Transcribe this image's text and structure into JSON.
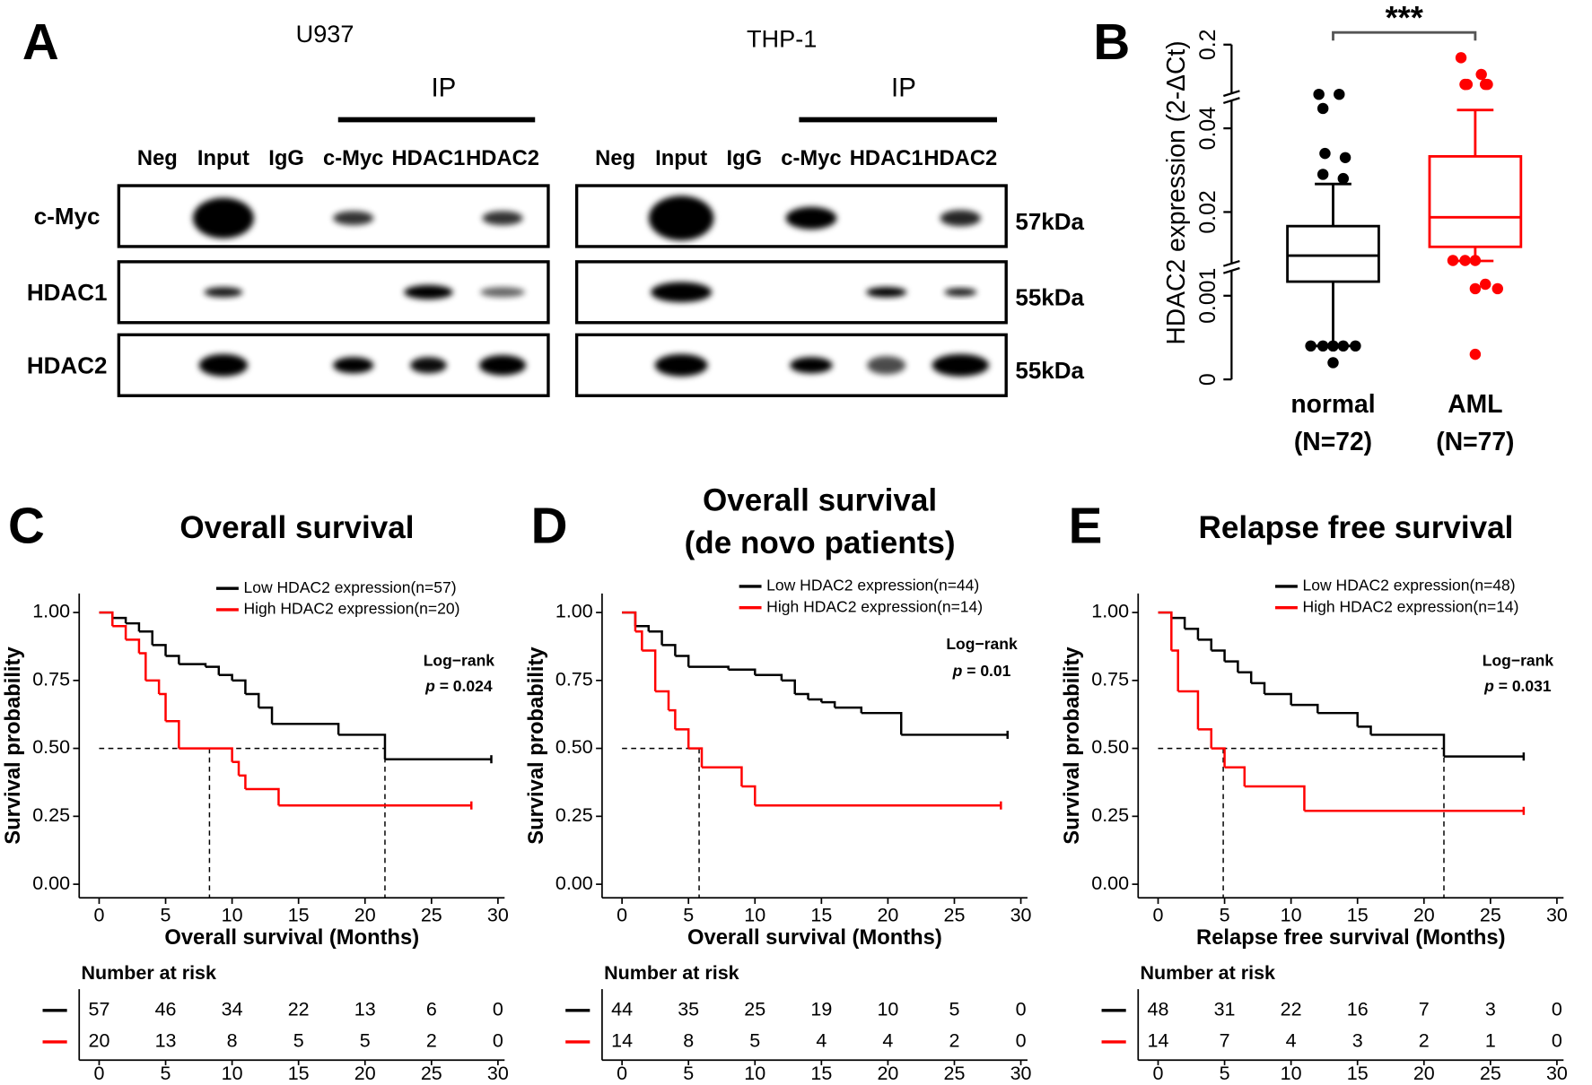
{
  "panel_a": {
    "panel_label": "A",
    "blots": [
      {
        "cell_line": "U937",
        "ip_label": "IP",
        "lanes": [
          "Neg",
          "Input",
          "IgG",
          "c-Myc",
          "HDAC1",
          "HDAC2"
        ]
      },
      {
        "cell_line": "THP-1",
        "ip_label": "IP",
        "lanes": [
          "Neg",
          "Input",
          "IgG",
          "c-Myc",
          "HDAC1",
          "HDAC2"
        ]
      }
    ],
    "rows": [
      {
        "protein": "c-Myc",
        "size": "57kDa"
      },
      {
        "protein": "HDAC1",
        "size": "55kDa"
      },
      {
        "protein": "HDAC2",
        "size": "55kDa"
      }
    ]
  },
  "chart_data": [
    {
      "type": "box",
      "panel_label": "B",
      "y_label": "HDAC2 expression (2-ΔCt)",
      "annotation": "***",
      "categories": [
        "normal",
        "AML"
      ],
      "category_notes": [
        "(N=72)",
        "(N=77)"
      ],
      "colors": [
        "#000000",
        "#ff0000"
      ],
      "boxes": [
        {
          "whisker_low": 0.0004,
          "q1": 0.0042,
          "median": 0.0101,
          "q3": 0.0168,
          "whisker_high": 0.0267,
          "outliers": [
            0.105,
            0.105,
            0.078,
            0.034,
            0.033,
            0.029,
            0.028,
            0.0004,
            0.0004,
            0.0004,
            0.0004,
            0.0004,
            0.0004,
            0.0002
          ]
        },
        {
          "whisker_low": 0.0089,
          "q1": 0.0121,
          "median": 0.0188,
          "q3": 0.0333,
          "whisker_high": 0.075,
          "outliers": [
            0.175,
            0.143,
            0.124,
            0.124,
            0.124,
            0.124,
            0.124,
            0.009,
            0.009,
            0.009,
            0.0036,
            0.0026,
            0.0026,
            0.0003
          ]
        }
      ],
      "ylim": [
        0,
        0.2
      ],
      "yticks": [
        0,
        0.001,
        0.02,
        0.04,
        0.2
      ],
      "y_breaks": [
        0.0075,
        0.1
      ]
    },
    {
      "type": "km",
      "panel_label": "C",
      "title": [
        "Overall survival"
      ],
      "x_label": "Overall survival (Months)",
      "y_label": "Survival probability",
      "test": "Log−rank",
      "p_symbol": "p",
      "p_text": "= 0.024",
      "median_level": 0.5,
      "xlim": [
        -1.5,
        30.5
      ],
      "ylim": [
        -0.05,
        1.07
      ],
      "xticks": [
        0,
        5,
        10,
        15,
        20,
        25,
        30
      ],
      "yticks": [
        {
          "value": 0,
          "label": "0.00"
        },
        {
          "value": 0.25,
          "label": "0.25"
        },
        {
          "value": 0.5,
          "label": "0.50"
        },
        {
          "value": 0.75,
          "label": "0.75"
        },
        {
          "value": 1,
          "label": "1.00"
        }
      ],
      "risk_table_title": "Number at risk",
      "risk_times": [
        0,
        5,
        10,
        15,
        20,
        25,
        30
      ],
      "series": [
        {
          "name": "Low HDAC2 expression(n=57)",
          "color": "#000000",
          "median": 21.5,
          "x": [
            0,
            1,
            2,
            3,
            4,
            5,
            6,
            8,
            9,
            10,
            11,
            12,
            13,
            18,
            21.5,
            29.5
          ],
          "values": [
            1,
            0.98,
            0.96,
            0.93,
            0.88,
            0.84,
            0.81,
            0.8,
            0.77,
            0.75,
            0.7,
            0.65,
            0.59,
            0.55,
            0.46,
            0.46
          ],
          "at_risk": [
            57,
            46,
            34,
            22,
            13,
            6,
            0
          ]
        },
        {
          "name": "High HDAC2 expression(n=20)",
          "color": "#ff0000",
          "median": 8.3,
          "x": [
            0,
            1,
            2,
            3,
            3.5,
            4.5,
            5,
            6,
            10,
            10.5,
            11,
            13.5,
            28
          ],
          "values": [
            1,
            0.95,
            0.9,
            0.85,
            0.75,
            0.7,
            0.6,
            0.5,
            0.45,
            0.4,
            0.35,
            0.29,
            0.29
          ],
          "at_risk": [
            20,
            13,
            8,
            5,
            5,
            2,
            0
          ]
        }
      ]
    },
    {
      "type": "km",
      "panel_label": "D",
      "title": [
        "Overall survival",
        "(de novo patients)"
      ],
      "x_label": "Overall survival (Months)",
      "y_label": "Survival probability",
      "test": "Log−rank",
      "p_symbol": "p",
      "p_text": "= 0.01",
      "median_level": 0.5,
      "xlim": [
        -1.5,
        30.5
      ],
      "ylim": [
        -0.05,
        1.07
      ],
      "xticks": [
        0,
        5,
        10,
        15,
        20,
        25,
        30
      ],
      "yticks": [
        {
          "value": 0,
          "label": "0.00"
        },
        {
          "value": 0.25,
          "label": "0.25"
        },
        {
          "value": 0.5,
          "label": "0.50"
        },
        {
          "value": 0.75,
          "label": "0.75"
        },
        {
          "value": 1,
          "label": "1.00"
        }
      ],
      "risk_table_title": "Number at risk",
      "risk_times": [
        0,
        5,
        10,
        15,
        20,
        25,
        30
      ],
      "series": [
        {
          "name": "Low HDAC2 expression(n=44)",
          "color": "#000000",
          "x": [
            0,
            1,
            2,
            3,
            4,
            5,
            8,
            10,
            12,
            13,
            14,
            15,
            16,
            18,
            21,
            29
          ],
          "values": [
            1,
            0.95,
            0.93,
            0.88,
            0.84,
            0.8,
            0.79,
            0.77,
            0.75,
            0.7,
            0.68,
            0.67,
            0.65,
            0.63,
            0.55,
            0.55
          ],
          "at_risk": [
            44,
            35,
            25,
            19,
            10,
            5,
            0
          ]
        },
        {
          "name": "High HDAC2 expression(n=14)",
          "color": "#ff0000",
          "median": 5.8,
          "x": [
            0,
            1,
            1.5,
            2.5,
            3.5,
            4,
            5,
            6,
            9,
            10,
            28.5
          ],
          "values": [
            1,
            0.93,
            0.86,
            0.71,
            0.64,
            0.57,
            0.5,
            0.43,
            0.36,
            0.29,
            0.29
          ],
          "at_risk": [
            14,
            8,
            5,
            4,
            4,
            2,
            0
          ]
        }
      ]
    },
    {
      "type": "km",
      "panel_label": "E",
      "title": [
        "Relapse free survival"
      ],
      "x_label": "Relapse free survival (Months)",
      "y_label": "Survival probability",
      "test": "Log−rank",
      "p_symbol": "p",
      "p_text": "= 0.031",
      "median_level": 0.5,
      "xlim": [
        -1.5,
        30.5
      ],
      "ylim": [
        -0.05,
        1.07
      ],
      "xticks": [
        0,
        5,
        10,
        15,
        20,
        25,
        30
      ],
      "yticks": [
        {
          "value": 0,
          "label": "0.00"
        },
        {
          "value": 0.25,
          "label": "0.25"
        },
        {
          "value": 0.5,
          "label": "0.50"
        },
        {
          "value": 0.75,
          "label": "0.75"
        },
        {
          "value": 1,
          "label": "1.00"
        }
      ],
      "risk_table_title": "Number at risk",
      "risk_times": [
        0,
        5,
        10,
        15,
        20,
        25,
        30
      ],
      "series": [
        {
          "name": "Low HDAC2 expression(n=48)",
          "color": "#000000",
          "median": 21.5,
          "x": [
            0,
            1,
            2,
            3,
            4,
            5,
            6,
            7,
            8,
            10,
            12,
            15,
            16,
            21.5,
            27.5
          ],
          "values": [
            1,
            0.98,
            0.94,
            0.9,
            0.86,
            0.82,
            0.78,
            0.74,
            0.7,
            0.66,
            0.63,
            0.58,
            0.55,
            0.47,
            0.47
          ],
          "at_risk": [
            48,
            31,
            22,
            16,
            7,
            3,
            0
          ]
        },
        {
          "name": "High HDAC2 expression(n=14)",
          "color": "#ff0000",
          "median": 4.9,
          "x": [
            0,
            1,
            1.5,
            3,
            4,
            5,
            6.5,
            11,
            27.5
          ],
          "values": [
            1,
            0.86,
            0.71,
            0.57,
            0.5,
            0.43,
            0.36,
            0.27,
            0.27
          ],
          "at_risk": [
            14,
            7,
            4,
            3,
            2,
            1,
            0
          ]
        }
      ]
    }
  ]
}
